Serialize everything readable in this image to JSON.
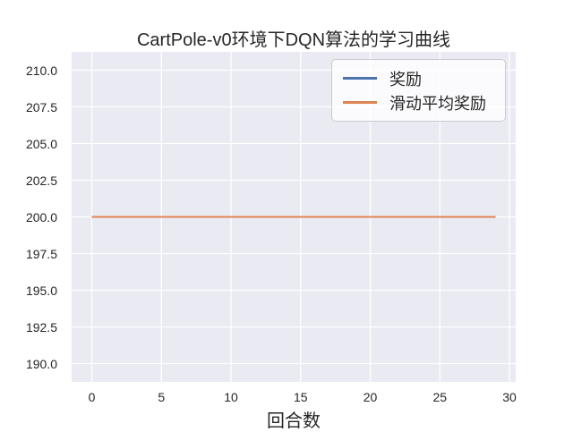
{
  "chart_data": {
    "type": "line",
    "title": "CartPole-v0环境下DQN算法的学习曲线",
    "xlabel": "回合数",
    "ylabel": "",
    "xlim": [
      -1.45,
      30.45
    ],
    "ylim": [
      188.75,
      211.25
    ],
    "x_ticks": [
      0,
      5,
      10,
      15,
      20,
      25,
      30
    ],
    "x_tick_labels": [
      "0",
      "5",
      "10",
      "15",
      "20",
      "25",
      "30"
    ],
    "y_ticks": [
      190.0,
      192.5,
      195.0,
      197.5,
      200.0,
      202.5,
      205.0,
      207.5,
      210.0
    ],
    "y_tick_labels": [
      "190.0",
      "192.5",
      "195.0",
      "197.5",
      "200.0",
      "202.5",
      "205.0",
      "207.5",
      "210.0"
    ],
    "grid": true,
    "legend_position": "upper right",
    "x": [
      0,
      1,
      2,
      3,
      4,
      5,
      6,
      7,
      8,
      9,
      10,
      11,
      12,
      13,
      14,
      15,
      16,
      17,
      18,
      19,
      20,
      21,
      22,
      23,
      24,
      25,
      26,
      27,
      28,
      29
    ],
    "series": [
      {
        "name": "奖励",
        "color": "#4c72b0",
        "values": [
          200,
          200,
          200,
          200,
          200,
          200,
          200,
          200,
          200,
          200,
          200,
          200,
          200,
          200,
          200,
          200,
          200,
          200,
          200,
          200,
          200,
          200,
          200,
          200,
          200,
          200,
          200,
          200,
          200,
          200
        ]
      },
      {
        "name": "滑动平均奖励",
        "color": "#dd8452",
        "values": [
          200,
          200,
          200,
          200,
          200,
          200,
          200,
          200,
          200,
          200,
          200,
          200,
          200,
          200,
          200,
          200,
          200,
          200,
          200,
          200,
          200,
          200,
          200,
          200,
          200,
          200,
          200,
          200,
          200,
          200
        ]
      }
    ]
  },
  "style": {
    "figure_background": "#ffffff",
    "axes_background": "#eaeaf2",
    "grid_color": "#ffffff",
    "text_color": "#262626",
    "legend_border_color": "#cccccc"
  }
}
